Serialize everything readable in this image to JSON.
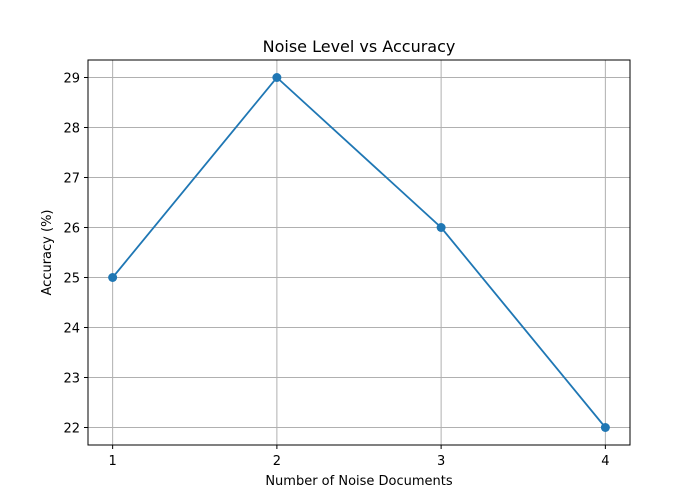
{
  "chart_data": {
    "type": "line",
    "title": "Noise Level vs Accuracy",
    "xlabel": "Number of Noise Documents",
    "ylabel": "Accuracy (%)",
    "x": [
      1,
      2,
      3,
      4
    ],
    "series": [
      {
        "values": [
          25,
          29,
          26,
          22
        ],
        "color": "#1f77b4",
        "marker": "circle"
      }
    ],
    "xticks": [
      1,
      2,
      3,
      4
    ],
    "yticks": [
      22,
      23,
      24,
      25,
      26,
      27,
      28,
      29
    ],
    "xlim": [
      0.85,
      4.15
    ],
    "ylim": [
      21.65,
      29.35
    ],
    "grid": true,
    "legend": "none"
  }
}
